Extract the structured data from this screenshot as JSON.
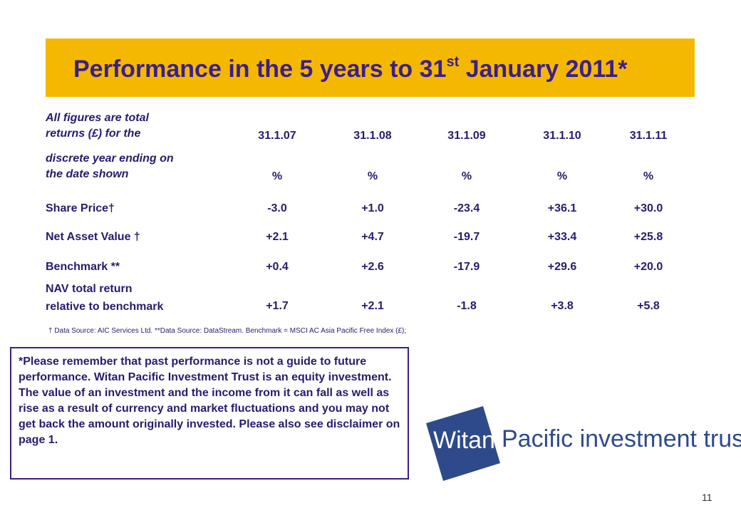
{
  "title": {
    "main": "Performance in the 5 years to 31",
    "sup": "st",
    "tail": " January 2011*"
  },
  "header": {
    "label_lines": [
      "All figures are total",
      "returns (£) for the",
      "discrete year ending on",
      "the date shown"
    ],
    "dates": [
      "31.1.07",
      "31.1.08",
      "31.1.09",
      "31.1.10",
      "31.1.11"
    ],
    "units": [
      "%",
      "%",
      "%",
      "%",
      "%"
    ]
  },
  "rows": [
    {
      "label": "Share Price†",
      "values": [
        "-3.0",
        "+1.0",
        "-23.4",
        "+36.1",
        "+30.0"
      ]
    },
    {
      "label": "Net Asset Value †",
      "values": [
        "+2.1",
        "+4.7",
        "-19.7",
        "+33.4",
        "+25.8"
      ]
    },
    {
      "label": "Benchmark **",
      "values": [
        "+0.4",
        "+2.6",
        "-17.9",
        "+29.6",
        "+20.0"
      ]
    },
    {
      "label_lines": [
        "NAV total return",
        "relative to benchmark"
      ],
      "values": [
        "+1.7",
        "+2.1",
        "-1.8",
        "+3.8",
        "+5.8"
      ]
    }
  ],
  "footnote": "† Data Source: AIC Services Ltd. **Data Source: DataStream. Benchmark = MSCI AC Asia Pacific Free Index (£);",
  "disclaimer": "*Please remember that past performance is not a guide to future performance. Witan Pacific Investment Trust is an equity investment. The value of an investment and the income from it can fall as well as rise as a result of currency and market fluctuations and you may not get back the amount originally invested. Please also see disclaimer on page 1.",
  "logo": {
    "box_text": "Witan",
    "text": "Pacific investment trust",
    "box_color": "#2E4A8A"
  },
  "page_number": "11",
  "colors": {
    "band": "#F5B800",
    "title": "#3B1E8C",
    "text": "#2A1A6E"
  }
}
